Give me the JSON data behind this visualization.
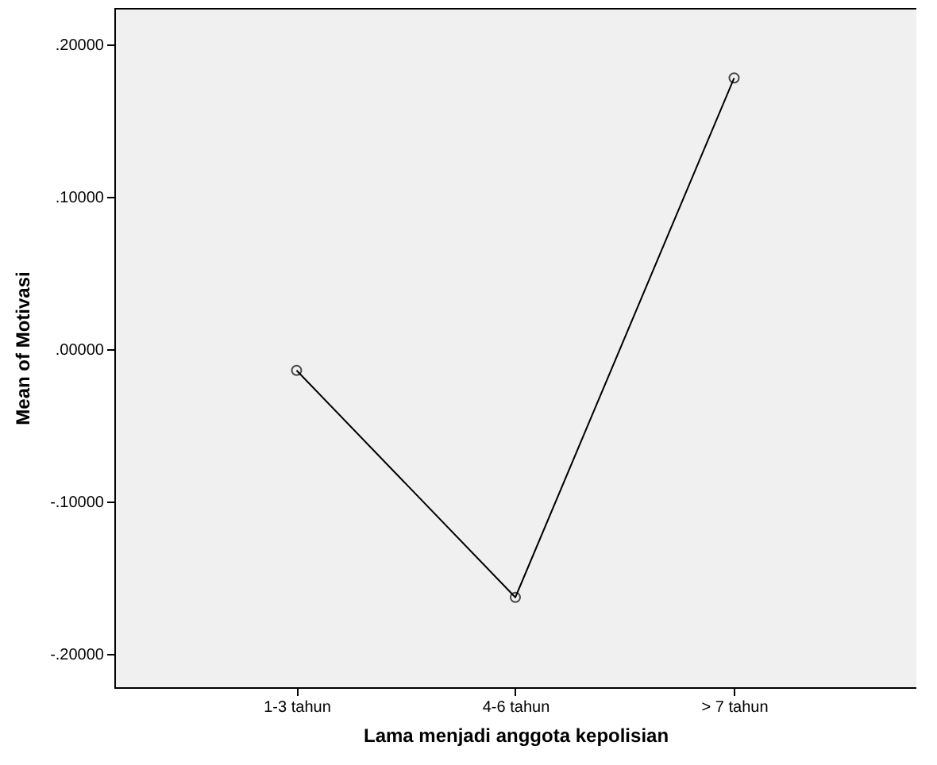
{
  "chart_data": {
    "type": "line",
    "xlabel": "Lama menjadi anggota kepolisian",
    "ylabel": "Mean of Motivasi",
    "categories": [
      "1-3 tahun",
      "4-6 tahun",
      "> 7 tahun"
    ],
    "series": [
      {
        "color": "#000000",
        "values": [
          -0.014,
          -0.163,
          0.178
        ]
      }
    ],
    "ylim": [
      -0.222,
      0.224
    ],
    "yticks": [
      {
        "value": -0.2,
        "label": "-.20000"
      },
      {
        "value": -0.1,
        "label": "-.10000"
      },
      {
        "value": 0,
        "label": ".00000"
      },
      {
        "value": 0.1,
        "label": ".10000"
      },
      {
        "value": 0.2,
        "label": ".20000"
      }
    ],
    "grid": false,
    "marker": "circle",
    "line_style": "solid"
  }
}
